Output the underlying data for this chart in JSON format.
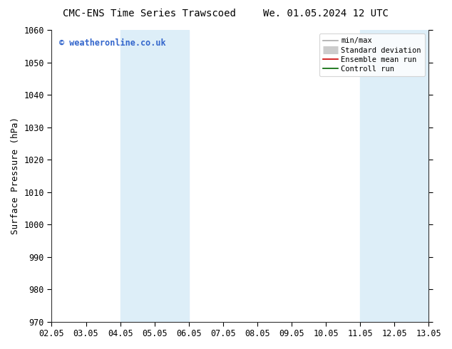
{
  "title_left": "CMC-ENS Time Series Trawscoed",
  "title_right": "We. 01.05.2024 12 UTC",
  "ylabel": "Surface Pressure (hPa)",
  "ylim": [
    970,
    1060
  ],
  "yticks": [
    970,
    980,
    990,
    1000,
    1010,
    1020,
    1030,
    1040,
    1050,
    1060
  ],
  "xtick_labels": [
    "02.05",
    "03.05",
    "04.05",
    "05.05",
    "06.05",
    "07.05",
    "08.05",
    "09.05",
    "10.05",
    "11.05",
    "12.05",
    "13.05"
  ],
  "shaded_bands": [
    {
      "xstart": 2,
      "xend": 4,
      "color": "#ddeef8"
    },
    {
      "xstart": 9,
      "xend": 11,
      "color": "#ddeef8"
    }
  ],
  "legend_items": [
    {
      "label": "min/max",
      "color": "#aaaaaa",
      "lw": 1.2
    },
    {
      "label": "Standard deviation",
      "color": "#cccccc",
      "lw": 6
    },
    {
      "label": "Ensemble mean run",
      "color": "#cc0000",
      "lw": 1.2
    },
    {
      "label": "Controll run",
      "color": "#006600",
      "lw": 1.2
    }
  ],
  "watermark": "© weatheronline.co.uk",
  "watermark_color": "#3366cc",
  "background_color": "#ffffff",
  "plot_bg_color": "#ffffff",
  "title_fontsize": 10,
  "ylabel_fontsize": 9,
  "tick_fontsize": 8.5,
  "legend_fontsize": 7.5
}
